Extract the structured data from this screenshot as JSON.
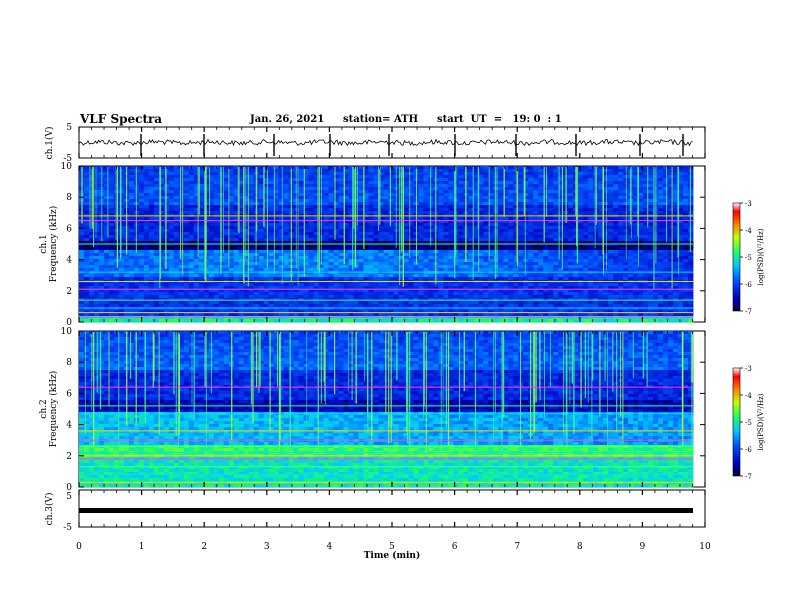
{
  "header": {
    "title": "VLF Spectra",
    "date": "Jan. 26, 2021",
    "station": "station= ATH",
    "start": "start  UT  =   19: 0  : 1"
  },
  "chart_data": [
    {
      "type": "line",
      "panel": "ch1-waveform",
      "ylabel": "ch.1(V)",
      "ylim": [
        -5,
        5
      ],
      "yticks": [
        "5",
        "-5"
      ],
      "xlim": [
        0,
        10
      ]
    },
    {
      "type": "heatmap",
      "panel": "ch1-spectrogram",
      "ylabel_top": "ch.1",
      "ylabel": "Frequency (kHz)",
      "ylim": [
        0,
        10
      ],
      "yticks": [
        "0",
        "2",
        "4",
        "6",
        "8",
        "10"
      ],
      "xlim": [
        0,
        10
      ],
      "colorbar": {
        "label": "log(PSD)(V²/Hz)",
        "range": [
          -7,
          -3
        ],
        "ticks": [
          "-3",
          "-4",
          "-5",
          "-6",
          "-7"
        ]
      }
    },
    {
      "type": "heatmap",
      "panel": "ch2-spectrogram",
      "ylabel_top": "ch.2",
      "ylabel": "Frequency (kHz)",
      "ylim": [
        0,
        10
      ],
      "yticks": [
        "0",
        "2",
        "4",
        "6",
        "8",
        "10"
      ],
      "xlim": [
        0,
        10
      ],
      "colorbar": {
        "label": "log(PSD)(V²/Hz)",
        "range": [
          -7,
          -3
        ],
        "ticks": [
          "-3",
          "-4",
          "-5",
          "-6",
          "-7"
        ]
      }
    },
    {
      "type": "line",
      "panel": "ch3-waveform",
      "ylabel": "ch.3(V)",
      "ylim": [
        -5,
        5
      ],
      "yticks": [
        "5",
        "-5"
      ],
      "xlim": [
        0,
        10
      ]
    }
  ],
  "xaxis": {
    "label": "Time  (min)",
    "ticks": [
      "0",
      "1",
      "2",
      "3",
      "4",
      "5",
      "6",
      "7",
      "8",
      "9",
      "10"
    ]
  }
}
